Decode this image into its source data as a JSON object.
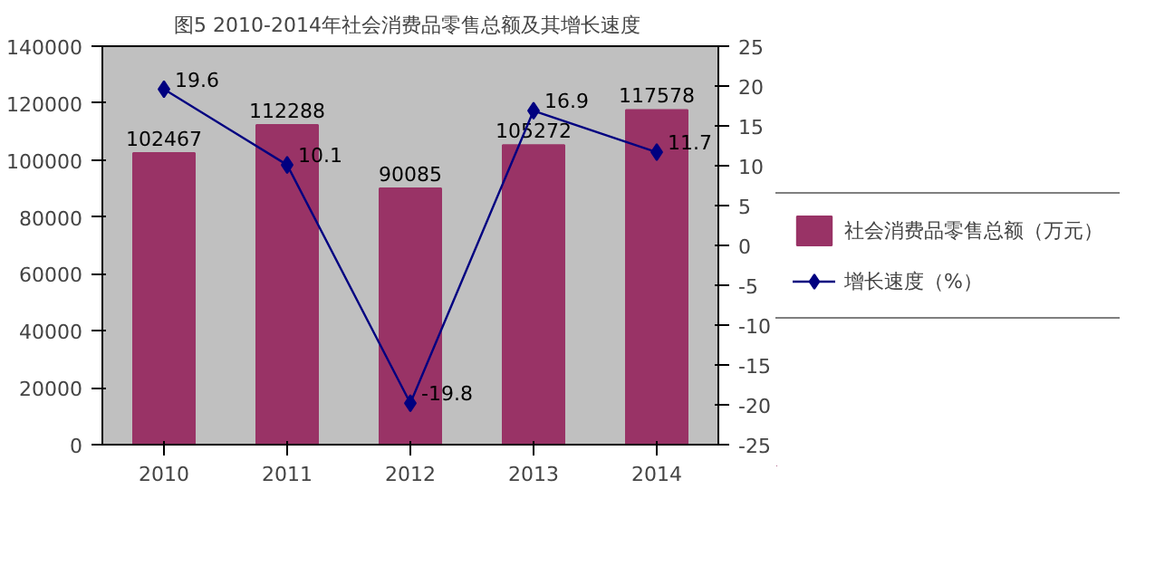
{
  "chart_data": {
    "type": "bar",
    "title": "图5  2010-2014年社会消费品零售总额及其增长速度",
    "categories": [
      "2010",
      "2011",
      "2012",
      "2013",
      "2014"
    ],
    "series": [
      {
        "name": "社会消费品零售总额（万元）",
        "color": "#993366",
        "values": [
          102467,
          112288,
          90085,
          105272,
          117578
        ]
      },
      {
        "name": "增长速度（%）",
        "type": "line",
        "axis": "y2",
        "color": "#000080",
        "values": [
          19.6,
          10.1,
          -19.8,
          16.9,
          11.7
        ]
      }
    ],
    "ylim": [
      0,
      140000
    ],
    "yticks": [
      0,
      20000,
      40000,
      60000,
      80000,
      100000,
      120000,
      140000
    ],
    "y2lim": [
      -25,
      25
    ],
    "y2ticks": [
      -25,
      -20,
      -15,
      -10,
      -5,
      0,
      5,
      10,
      15,
      20,
      25
    ],
    "data_labels": true,
    "legend": "right",
    "marker": "diamond",
    "grid": false
  }
}
